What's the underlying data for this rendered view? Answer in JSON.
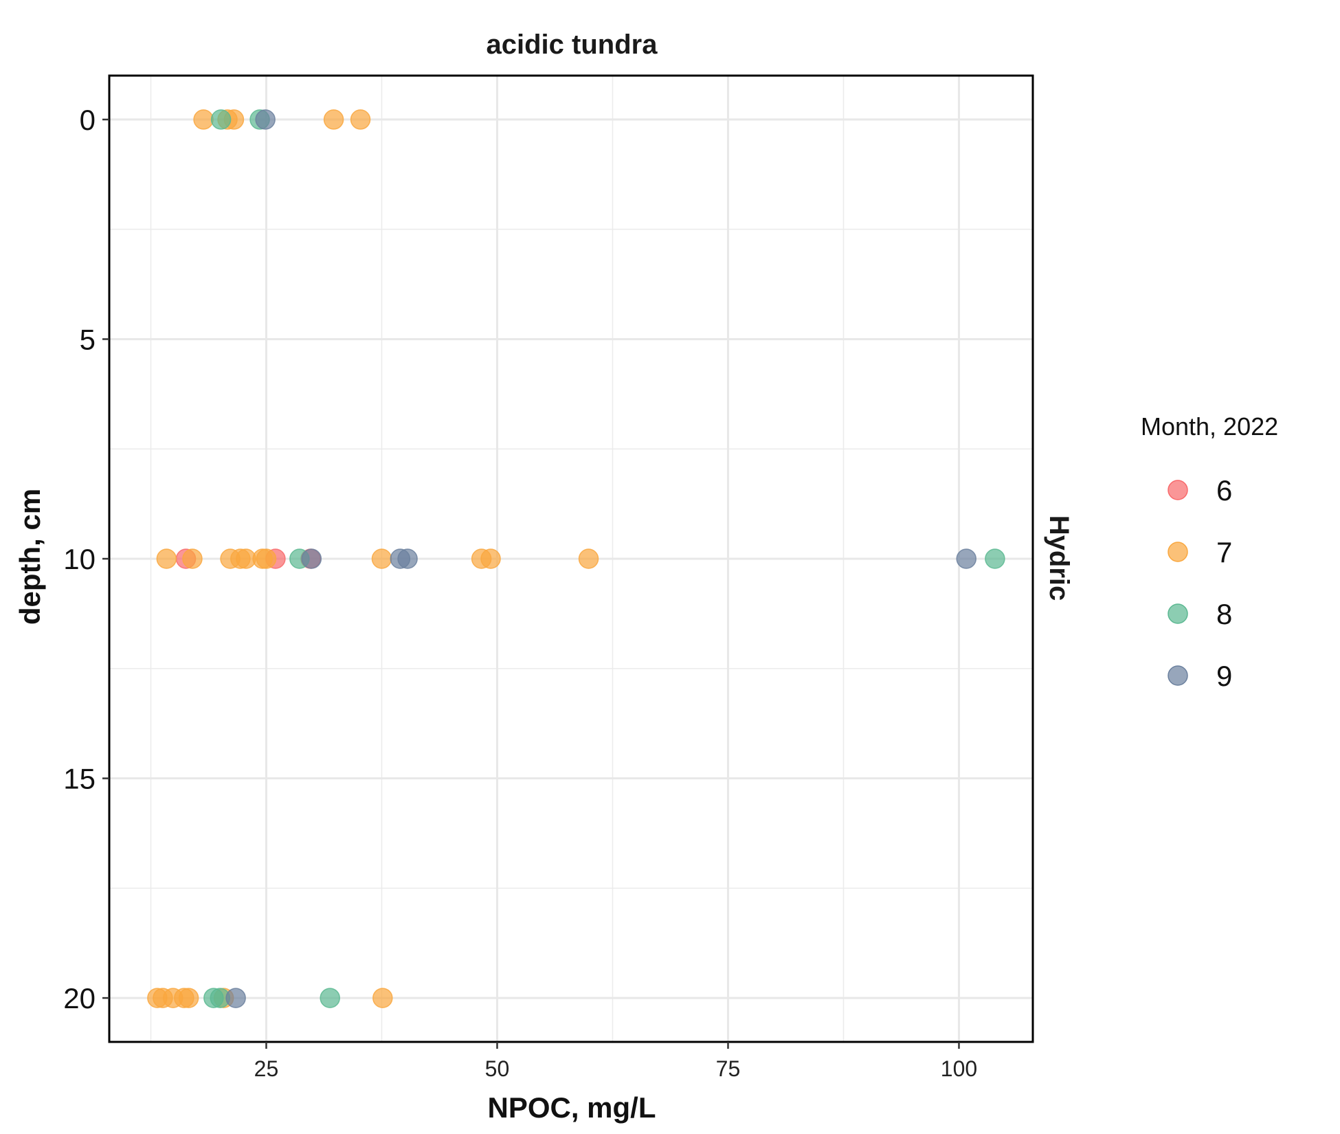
{
  "chart_data": {
    "type": "scatter",
    "title": "acidic tundra",
    "xlabel": "NPOC, mg/L",
    "ylabel": "depth, cm",
    "facet_label": "Hydric",
    "xlim": [
      8,
      108
    ],
    "ylim": [
      21,
      -1
    ],
    "y_reversed": true,
    "xticks": [
      25,
      50,
      75,
      100
    ],
    "yticks": [
      0,
      5,
      10,
      15,
      20
    ],
    "grid": true,
    "legend": {
      "title": "Month, 2022",
      "placement": "right"
    },
    "series": [
      {
        "name": "6",
        "color": "#f8696b",
        "points": [
          {
            "x": 16.3,
            "y": 10
          },
          {
            "x": 26.0,
            "y": 10
          },
          {
            "x": 29.8,
            "y": 10
          }
        ]
      },
      {
        "name": "7",
        "color": "#f9a73e",
        "points": [
          {
            "x": 18.2,
            "y": 0
          },
          {
            "x": 20.8,
            "y": 0
          },
          {
            "x": 21.5,
            "y": 0
          },
          {
            "x": 32.3,
            "y": 0
          },
          {
            "x": 35.2,
            "y": 0
          },
          {
            "x": 14.2,
            "y": 10
          },
          {
            "x": 17.0,
            "y": 10
          },
          {
            "x": 21.1,
            "y": 10
          },
          {
            "x": 22.2,
            "y": 10
          },
          {
            "x": 22.8,
            "y": 10
          },
          {
            "x": 24.6,
            "y": 10
          },
          {
            "x": 25.0,
            "y": 10
          },
          {
            "x": 37.5,
            "y": 10
          },
          {
            "x": 48.3,
            "y": 10
          },
          {
            "x": 49.3,
            "y": 10
          },
          {
            "x": 59.9,
            "y": 10
          },
          {
            "x": 13.2,
            "y": 20
          },
          {
            "x": 13.8,
            "y": 20
          },
          {
            "x": 14.9,
            "y": 20
          },
          {
            "x": 16.1,
            "y": 20
          },
          {
            "x": 16.6,
            "y": 20
          },
          {
            "x": 20.4,
            "y": 20
          },
          {
            "x": 37.6,
            "y": 20
          }
        ]
      },
      {
        "name": "8",
        "color": "#5bb891",
        "points": [
          {
            "x": 20.1,
            "y": 0
          },
          {
            "x": 24.3,
            "y": 0
          },
          {
            "x": 28.6,
            "y": 10
          },
          {
            "x": 103.9,
            "y": 10
          },
          {
            "x": 19.3,
            "y": 20
          },
          {
            "x": 20.0,
            "y": 20
          },
          {
            "x": 31.9,
            "y": 20
          }
        ]
      },
      {
        "name": "9",
        "color": "#6b809e",
        "points": [
          {
            "x": 24.9,
            "y": 0
          },
          {
            "x": 29.9,
            "y": 10
          },
          {
            "x": 39.5,
            "y": 10
          },
          {
            "x": 40.3,
            "y": 10
          },
          {
            "x": 100.8,
            "y": 10
          },
          {
            "x": 21.7,
            "y": 20
          }
        ]
      }
    ]
  }
}
